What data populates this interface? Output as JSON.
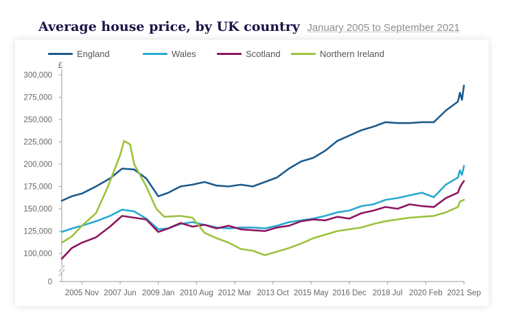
{
  "title": "Average house price, by UK country",
  "subtitle": "January 2005 to September 2021",
  "colors": {
    "England": "#1b5a8c",
    "Wales": "#27a8d0",
    "Scotland": "#8e1560",
    "Northern Ireland": "#9cc23c"
  },
  "chart_data": {
    "type": "line",
    "title": "Average house price, by UK country",
    "subtitle": "January 2005 to September 2021",
    "ylabel": "£",
    "xlabel": "",
    "y_axis_break": true,
    "ylim": [
      100000,
      300000
    ],
    "y_ticks": [
      "0",
      "100,000",
      "125,000",
      "150,000",
      "175,000",
      "200,000",
      "225,000",
      "250,000",
      "275,000",
      "300,000"
    ],
    "x_ticks": [
      "2005 Nov",
      "2007 Jun",
      "2009 Jan",
      "2010 Aug",
      "2012 Mar",
      "2013 Oct",
      "2015 May",
      "2016 Dec",
      "2018 Jul",
      "2020 Feb",
      "2021 Sep"
    ],
    "grid": false,
    "legend": "top",
    "series": [
      {
        "name": "England",
        "points": [
          [
            "2005 Jan",
            159000
          ],
          [
            "2005 Jun",
            164000
          ],
          [
            "2005 Nov",
            167000
          ],
          [
            "2006 Jun",
            175000
          ],
          [
            "2007 Jan",
            184000
          ],
          [
            "2007 Jul",
            195000
          ],
          [
            "2008 Jan",
            194000
          ],
          [
            "2008 Jul",
            184000
          ],
          [
            "2009 Jan",
            164000
          ],
          [
            "2009 Jun",
            168000
          ],
          [
            "2009 Dec",
            175000
          ],
          [
            "2010 Jun",
            177000
          ],
          [
            "2010 Dec",
            180000
          ],
          [
            "2011 Jun",
            176000
          ],
          [
            "2011 Dec",
            175000
          ],
          [
            "2012 Jun",
            177000
          ],
          [
            "2012 Dec",
            175000
          ],
          [
            "2013 Jun",
            180000
          ],
          [
            "2013 Dec",
            185000
          ],
          [
            "2014 Jun",
            195000
          ],
          [
            "2014 Dec",
            203000
          ],
          [
            "2015 Jun",
            207000
          ],
          [
            "2015 Dec",
            215000
          ],
          [
            "2016 Jun",
            226000
          ],
          [
            "2016 Dec",
            232000
          ],
          [
            "2017 Jun",
            238000
          ],
          [
            "2017 Dec",
            242000
          ],
          [
            "2018 Jun",
            247000
          ],
          [
            "2018 Dec",
            246000
          ],
          [
            "2019 Jun",
            246000
          ],
          [
            "2019 Dec",
            247000
          ],
          [
            "2020 Jun",
            247000
          ],
          [
            "2020 Dec",
            260000
          ],
          [
            "2021 Jun",
            270000
          ],
          [
            "2021 Jul",
            280000
          ],
          [
            "2021 Aug",
            272000
          ],
          [
            "2021 Sep",
            288000
          ]
        ]
      },
      {
        "name": "Wales",
        "points": [
          [
            "2005 Jan",
            124000
          ],
          [
            "2005 Jun",
            128000
          ],
          [
            "2005 Nov",
            131000
          ],
          [
            "2006 Jun",
            136000
          ],
          [
            "2007 Jan",
            142000
          ],
          [
            "2007 Jul",
            149000
          ],
          [
            "2008 Jan",
            147000
          ],
          [
            "2008 Jul",
            139000
          ],
          [
            "2009 Jan",
            127000
          ],
          [
            "2009 Jun",
            128000
          ],
          [
            "2009 Dec",
            133000
          ],
          [
            "2010 Jun",
            135000
          ],
          [
            "2010 Dec",
            132000
          ],
          [
            "2011 Jun",
            129000
          ],
          [
            "2011 Dec",
            128000
          ],
          [
            "2012 Jun",
            129000
          ],
          [
            "2012 Dec",
            129000
          ],
          [
            "2013 Jun",
            128000
          ],
          [
            "2013 Dec",
            131000
          ],
          [
            "2014 Jun",
            135000
          ],
          [
            "2014 Dec",
            137000
          ],
          [
            "2015 Jun",
            139000
          ],
          [
            "2015 Dec",
            142000
          ],
          [
            "2016 Jun",
            146000
          ],
          [
            "2016 Dec",
            148000
          ],
          [
            "2017 Jun",
            153000
          ],
          [
            "2017 Dec",
            155000
          ],
          [
            "2018 Jun",
            160000
          ],
          [
            "2018 Dec",
            162000
          ],
          [
            "2019 Jun",
            165000
          ],
          [
            "2019 Dec",
            168000
          ],
          [
            "2020 Jun",
            163000
          ],
          [
            "2020 Dec",
            177000
          ],
          [
            "2021 Jun",
            185000
          ],
          [
            "2021 Jul",
            193000
          ],
          [
            "2021 Aug",
            188000
          ],
          [
            "2021 Sep",
            198000
          ]
        ]
      },
      {
        "name": "Scotland",
        "points": [
          [
            "2005 Jan",
            94000
          ],
          [
            "2005 Jun",
            106000
          ],
          [
            "2005 Nov",
            112000
          ],
          [
            "2006 Jun",
            118000
          ],
          [
            "2007 Jan",
            130000
          ],
          [
            "2007 Jul",
            142000
          ],
          [
            "2008 Jan",
            140000
          ],
          [
            "2008 Jul",
            138000
          ],
          [
            "2009 Jan",
            124000
          ],
          [
            "2009 Jun",
            128000
          ],
          [
            "2009 Dec",
            134000
          ],
          [
            "2010 Jun",
            130000
          ],
          [
            "2010 Dec",
            132000
          ],
          [
            "2011 Jun",
            128000
          ],
          [
            "2011 Dec",
            131000
          ],
          [
            "2012 Jun",
            127000
          ],
          [
            "2012 Dec",
            126000
          ],
          [
            "2013 Jun",
            125000
          ],
          [
            "2013 Dec",
            129000
          ],
          [
            "2014 Jun",
            131000
          ],
          [
            "2014 Dec",
            136000
          ],
          [
            "2015 Jun",
            138000
          ],
          [
            "2015 Dec",
            137000
          ],
          [
            "2016 Jun",
            141000
          ],
          [
            "2016 Dec",
            139000
          ],
          [
            "2017 Jun",
            145000
          ],
          [
            "2017 Dec",
            148000
          ],
          [
            "2018 Jun",
            152000
          ],
          [
            "2018 Dec",
            150000
          ],
          [
            "2019 Jun",
            155000
          ],
          [
            "2019 Dec",
            153000
          ],
          [
            "2020 Jun",
            152000
          ],
          [
            "2020 Dec",
            162000
          ],
          [
            "2021 Jun",
            168000
          ],
          [
            "2021 Jul",
            174000
          ],
          [
            "2021 Aug",
            178000
          ],
          [
            "2021 Sep",
            181000
          ]
        ]
      },
      {
        "name": "Northern Ireland",
        "points": [
          [
            "2005 Jan",
            112000
          ],
          [
            "2005 Jun",
            119000
          ],
          [
            "2005 Nov",
            131000
          ],
          [
            "2006 Jun",
            145000
          ],
          [
            "2006 Dec",
            175000
          ],
          [
            "2007 Jun",
            210000
          ],
          [
            "2007 Aug",
            226000
          ],
          [
            "2007 Nov",
            222000
          ],
          [
            "2008 Jan",
            200000
          ],
          [
            "2008 Jul",
            175000
          ],
          [
            "2008 Dec",
            150000
          ],
          [
            "2009 Apr",
            141000
          ],
          [
            "2009 Dec",
            142000
          ],
          [
            "2010 Jun",
            140000
          ],
          [
            "2010 Dec",
            123000
          ],
          [
            "2011 Jun",
            117000
          ],
          [
            "2011 Dec",
            112000
          ],
          [
            "2012 Jun",
            105000
          ],
          [
            "2012 Dec",
            103000
          ],
          [
            "2013 Jun",
            98000
          ],
          [
            "2013 Dec",
            102000
          ],
          [
            "2014 Jun",
            106000
          ],
          [
            "2014 Dec",
            111000
          ],
          [
            "2015 Jun",
            117000
          ],
          [
            "2015 Dec",
            121000
          ],
          [
            "2016 Jun",
            125000
          ],
          [
            "2016 Dec",
            127000
          ],
          [
            "2017 Jun",
            129000
          ],
          [
            "2017 Dec",
            133000
          ],
          [
            "2018 Jun",
            136000
          ],
          [
            "2018 Dec",
            138000
          ],
          [
            "2019 Jun",
            140000
          ],
          [
            "2019 Dec",
            141000
          ],
          [
            "2020 Jun",
            142000
          ],
          [
            "2020 Dec",
            146000
          ],
          [
            "2021 Jun",
            152000
          ],
          [
            "2021 Jul",
            158000
          ],
          [
            "2021 Sep",
            160000
          ]
        ]
      }
    ]
  }
}
